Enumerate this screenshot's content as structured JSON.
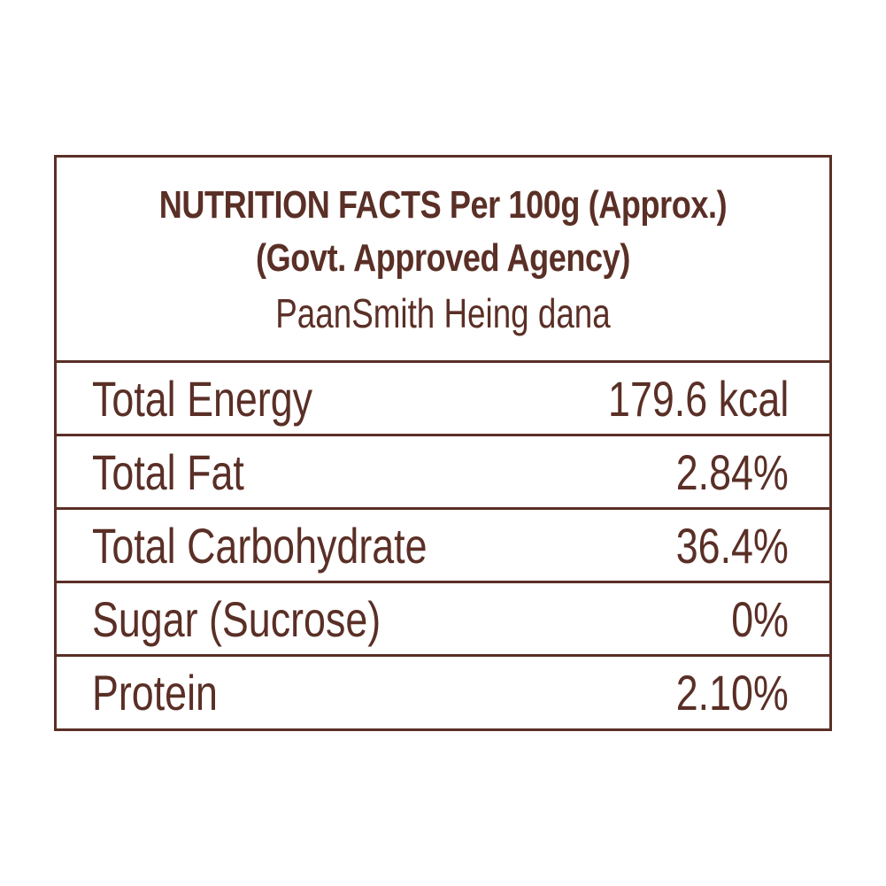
{
  "header": {
    "title_line1": "NUTRITION FACTS Per 100g (Approx.)",
    "title_line2": "(Govt. Approved Agency)",
    "product_name": "PaanSmith Heing dana"
  },
  "rows": [
    {
      "label": "Total Energy",
      "value": "179.6 kcal"
    },
    {
      "label": "Total Fat",
      "value": "2.84%"
    },
    {
      "label": "Total Carbohydrate",
      "value": "36.4%"
    },
    {
      "label": "Sugar (Sucrose)",
      "value": "0%"
    },
    {
      "label": "Protein",
      "value": "2.10%"
    }
  ],
  "colors": {
    "text": "#5a2f26",
    "border": "#5a2f26",
    "background": "#ffffff"
  }
}
